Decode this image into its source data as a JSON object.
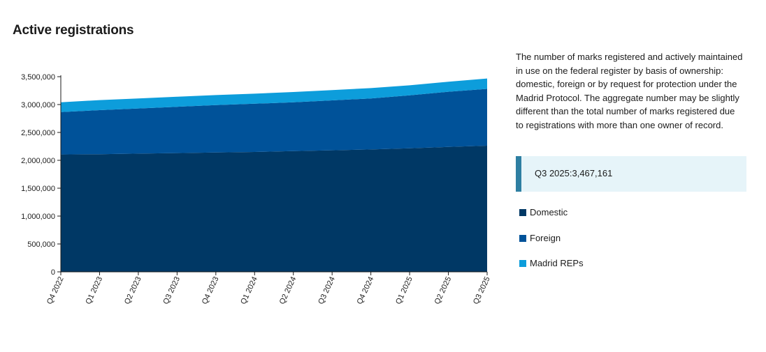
{
  "title": "Active registrations",
  "description": "The number of marks registered and actively maintained in use on the federal register by basis of ownership: domestic, foreign or by request for protection under the Madrid Protocol. The aggregate number may be slightly different than the total number of marks registered due to registrations with more than one owner of record.",
  "callout": {
    "text": "Q3 2025:3,467,161"
  },
  "colors": {
    "domestic": "#003865",
    "foreign": "#005299",
    "madrid": "#0d9ddb",
    "callout_bg": "#e6f4f9",
    "callout_bar": "#2e7fa2"
  },
  "chart_data": {
    "type": "area",
    "stacked": true,
    "categories": [
      "Q4 2022",
      "Q1 2023",
      "Q2 2023",
      "Q3 2023",
      "Q4 2023",
      "Q1 2024",
      "Q2 2024",
      "Q3 2024",
      "Q4 2024",
      "Q1 2025",
      "Q2 2025",
      "Q3 2025"
    ],
    "series": [
      {
        "name": "Domestic",
        "color": "#003865",
        "values": [
          2105000,
          2110000,
          2120000,
          2130000,
          2140000,
          2150000,
          2165000,
          2180000,
          2195000,
          2215000,
          2240000,
          2262000
        ]
      },
      {
        "name": "Foreign",
        "color": "#005299",
        "values": [
          760000,
          790000,
          810000,
          830000,
          850000,
          865000,
          875000,
          895000,
          915000,
          950000,
          990000,
          1020000
        ]
      },
      {
        "name": "Madrid REPs",
        "color": "#0d9ddb",
        "values": [
          175000,
          180000,
          180000,
          180000,
          180000,
          180000,
          185000,
          185000,
          185000,
          180000,
          180000,
          185161
        ]
      }
    ],
    "y_ticks": [
      0,
      500000,
      1000000,
      1500000,
      2000000,
      2500000,
      3000000,
      3500000
    ],
    "y_tick_labels": [
      "0",
      "500,000",
      "1,000,000",
      "1,500,000",
      "2,000,000",
      "2,500,000",
      "3,000,000",
      "3,500,000"
    ],
    "ylim": [
      0,
      3500000
    ],
    "legend_position": "right",
    "xlabel": "",
    "ylabel": ""
  }
}
